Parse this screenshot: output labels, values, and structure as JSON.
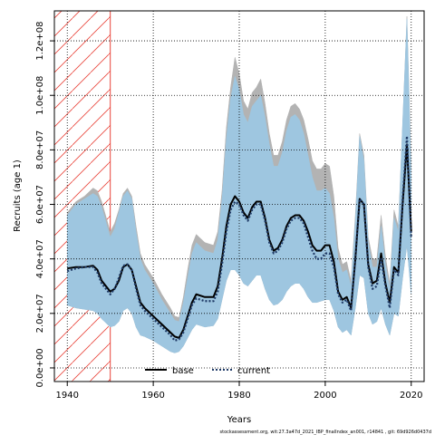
{
  "chart_data": {
    "type": "line",
    "title": "",
    "xlabel": "Years",
    "ylabel": "Recruits (age 1)",
    "xlim": [
      1937,
      2023
    ],
    "ylim": [
      -5000000,
      131000000
    ],
    "x_ticks": [
      1940,
      1960,
      1980,
      2000,
      2020
    ],
    "x_tick_labels": [
      "1940",
      "1960",
      "1980",
      "2000",
      "2020"
    ],
    "y_ticks": [
      0,
      20000000,
      40000000,
      60000000,
      80000000,
      100000000,
      120000000
    ],
    "y_tick_labels": [
      "0.0e+00",
      "2.0e+07",
      "4.0e+07",
      "6.0e+07",
      "8.0e+07",
      "1.0e+08",
      "1.2e+08"
    ],
    "grid": true,
    "legend_position": "bottom-center",
    "hatched_region": {
      "x_start": 1937,
      "x_end": 1950,
      "color": "#e8443a"
    },
    "series": [
      {
        "name": "base",
        "style": "solid",
        "color": "#000000",
        "band_color": "#b3b3b3",
        "x": [
          1940,
          1942,
          1944,
          1946,
          1947,
          1948,
          1950,
          1951,
          1952,
          1953,
          1954,
          1955,
          1956,
          1957,
          1958,
          1960,
          1962,
          1964,
          1965,
          1966,
          1967,
          1968,
          1969,
          1970,
          1972,
          1974,
          1975,
          1976,
          1977,
          1978,
          1979,
          1980,
          1981,
          1982,
          1983,
          1984,
          1985,
          1986,
          1987,
          1988,
          1989,
          1990,
          1991,
          1992,
          1993,
          1994,
          1995,
          1996,
          1997,
          1998,
          1999,
          2000,
          2001,
          2002,
          2003,
          2004,
          2005,
          2006,
          2007,
          2008,
          2009,
          2010,
          2011,
          2012,
          2013,
          2014,
          2015,
          2016,
          2017,
          2018,
          2019,
          2020
        ],
        "values": [
          36500000,
          37000000,
          37000000,
          37500000,
          36000000,
          32000000,
          28000000,
          29000000,
          32000000,
          37000000,
          38000000,
          36000000,
          30000000,
          24000000,
          22000000,
          19000000,
          16000000,
          13000000,
          11500000,
          11000000,
          14000000,
          19000000,
          24000000,
          27000000,
          26000000,
          26000000,
          30000000,
          40000000,
          52000000,
          60000000,
          63000000,
          61000000,
          57000000,
          55000000,
          59000000,
          61000000,
          61000000,
          55000000,
          47000000,
          43000000,
          44000000,
          47000000,
          52000000,
          55000000,
          56000000,
          56000000,
          54000000,
          50000000,
          45000000,
          43000000,
          43000000,
          45000000,
          45000000,
          39000000,
          28000000,
          25000000,
          26000000,
          22000000,
          40000000,
          62000000,
          60000000,
          38000000,
          31000000,
          32000000,
          42000000,
          31000000,
          24000000,
          37000000,
          35000000,
          60000000,
          82000000,
          50000000
        ],
        "lower": [
          23000000,
          22000000,
          21500000,
          21000000,
          20000000,
          18000000,
          15000000,
          15500000,
          17000000,
          21000000,
          22000000,
          20000000,
          15000000,
          12000000,
          11500000,
          10000000,
          8000000,
          6000000,
          5500000,
          6000000,
          8000000,
          11000000,
          14000000,
          16000000,
          15000000,
          15500000,
          18000000,
          25000000,
          32000000,
          36000000,
          36000000,
          34000000,
          31000000,
          30000000,
          32000000,
          34000000,
          34000000,
          29000000,
          25000000,
          23000000,
          23500000,
          25000000,
          28000000,
          30000000,
          31000000,
          31000000,
          29000000,
          26000000,
          24000000,
          24000000,
          24500000,
          25000000,
          25000000,
          21000000,
          15000000,
          13000000,
          14000000,
          12000000,
          22000000,
          34000000,
          33000000,
          20000000,
          16000000,
          17000000,
          22000000,
          16000000,
          12000000,
          20000000,
          19000000,
          33000000,
          45000000,
          27000000
        ],
        "upper": [
          57000000,
          61000000,
          63000000,
          66000000,
          65000000,
          61000000,
          50000000,
          53000000,
          58000000,
          64000000,
          66000000,
          63000000,
          52000000,
          42000000,
          38000000,
          33000000,
          27000000,
          22000000,
          19000000,
          18500000,
          26000000,
          36000000,
          45000000,
          49000000,
          46000000,
          45000000,
          50000000,
          65000000,
          88000000,
          103000000,
          114000000,
          108000000,
          98000000,
          95000000,
          101000000,
          103000000,
          106000000,
          97000000,
          86000000,
          78000000,
          78000000,
          83000000,
          91000000,
          96000000,
          97000000,
          95000000,
          91000000,
          84000000,
          76000000,
          73000000,
          73000000,
          75000000,
          74000000,
          63000000,
          44000000,
          38000000,
          39000000,
          32000000,
          56000000,
          86000000,
          78000000,
          48000000,
          40000000,
          40000000,
          56000000,
          41000000,
          31000000,
          58000000,
          52000000,
          89000000,
          129000000,
          74000000
        ]
      },
      {
        "name": "current",
        "style": "dotted",
        "color": "#1f3a66",
        "band_color": "#9ec6e0",
        "x": [
          1940,
          1942,
          1944,
          1946,
          1947,
          1948,
          1950,
          1951,
          1952,
          1953,
          1954,
          1955,
          1956,
          1957,
          1958,
          1960,
          1962,
          1964,
          1965,
          1966,
          1967,
          1968,
          1969,
          1970,
          1972,
          1974,
          1975,
          1976,
          1977,
          1978,
          1979,
          1980,
          1981,
          1982,
          1983,
          1984,
          1985,
          1986,
          1987,
          1988,
          1989,
          1990,
          1991,
          1992,
          1993,
          1994,
          1995,
          1996,
          1997,
          1998,
          1999,
          2000,
          2001,
          2002,
          2003,
          2004,
          2005,
          2006,
          2007,
          2008,
          2009,
          2010,
          2011,
          2012,
          2013,
          2014,
          2015,
          2016,
          2017,
          2018,
          2019,
          2020
        ],
        "values": [
          35500000,
          36500000,
          37000000,
          37000000,
          35000000,
          31000000,
          27000000,
          29000000,
          33000000,
          37500000,
          38000000,
          36000000,
          29000000,
          23000000,
          21000000,
          18000000,
          15000000,
          12000000,
          10000000,
          10500000,
          13000000,
          18000000,
          23000000,
          25500000,
          24500000,
          24500000,
          28000000,
          38000000,
          50000000,
          58000000,
          61000000,
          60000000,
          56000000,
          54000000,
          58000000,
          60000000,
          60000000,
          54000000,
          46000000,
          42000000,
          43000000,
          46000000,
          51000000,
          54000000,
          55000000,
          55000000,
          53000000,
          48000000,
          43000000,
          40000000,
          40000000,
          42000000,
          42000000,
          37000000,
          27000000,
          24000000,
          25000000,
          21000000,
          40000000,
          62000000,
          60000000,
          37000000,
          29000000,
          30000000,
          40000000,
          30000000,
          22000000,
          36000000,
          34000000,
          62000000,
          85000000,
          48000000
        ],
        "lower": [
          23000000,
          22000000,
          21500000,
          21000000,
          20000000,
          18000000,
          15000000,
          15500000,
          17000000,
          21000000,
          22000000,
          20000000,
          15000000,
          12000000,
          11500000,
          10000000,
          8000000,
          6000000,
          5500000,
          6000000,
          8000000,
          11000000,
          14000000,
          16000000,
          15000000,
          15500000,
          18000000,
          25000000,
          32000000,
          36000000,
          36000000,
          34000000,
          31000000,
          30000000,
          32000000,
          34000000,
          34000000,
          29000000,
          25000000,
          23000000,
          23500000,
          25000000,
          28000000,
          30000000,
          31000000,
          31000000,
          29000000,
          26000000,
          24000000,
          24000000,
          24500000,
          25000000,
          25000000,
          21000000,
          15000000,
          13000000,
          14000000,
          12000000,
          22000000,
          34000000,
          33000000,
          20000000,
          16000000,
          17000000,
          22000000,
          16000000,
          12000000,
          20000000,
          19000000,
          33000000,
          45000000,
          27000000
        ],
        "upper": [
          56000000,
          60000000,
          62000000,
          64000000,
          63000000,
          59000000,
          48000000,
          51000000,
          57000000,
          63000000,
          65000000,
          62000000,
          50000000,
          40000000,
          36000000,
          31000000,
          25000000,
          20000000,
          17500000,
          17000000,
          24000000,
          33000000,
          42000000,
          46000000,
          43000000,
          42000000,
          47000000,
          62000000,
          84000000,
          99000000,
          107000000,
          102000000,
          93000000,
          90000000,
          96000000,
          98000000,
          100000000,
          92000000,
          82000000,
          74000000,
          74000000,
          79000000,
          87000000,
          92000000,
          93000000,
          91000000,
          86000000,
          78000000,
          70000000,
          65000000,
          65000000,
          66000000,
          64000000,
          55000000,
          40000000,
          35000000,
          36000000,
          30000000,
          54000000,
          85000000,
          76000000,
          46000000,
          37000000,
          37000000,
          52000000,
          38000000,
          29000000,
          55000000,
          50000000,
          90000000,
          128000000,
          70000000
        ]
      }
    ],
    "legend": [
      {
        "label": "base",
        "style": "solid",
        "color": "#000000"
      },
      {
        "label": "current",
        "style": "dotted",
        "color": "#1f3a66"
      }
    ]
  },
  "footer": {
    "note": "stockassessment.org, wit:27.3a47d_2021_IBP_finalIndex_an001, r14841 , git: 69d926d0437d"
  }
}
